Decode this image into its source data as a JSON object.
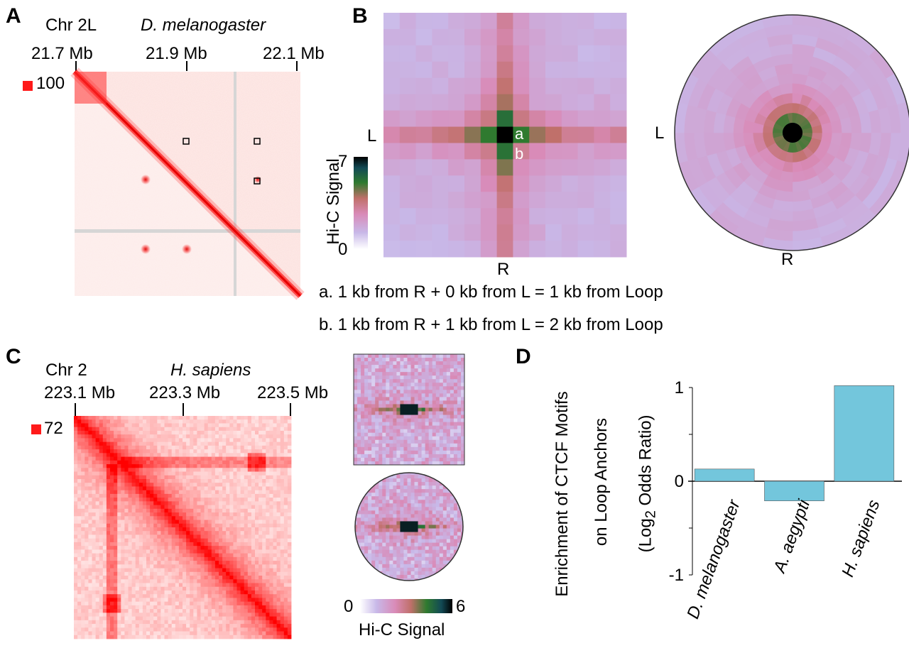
{
  "panels": {
    "A": {
      "letter": "A",
      "chrom": "Chr 2L",
      "species": "D. melanogaster",
      "ticks": [
        "21.7 Mb",
        "21.9 Mb",
        "22.1 Mb"
      ],
      "scale_value": "100"
    },
    "B": {
      "letter": "B",
      "colorbar_label": "Hi-C Signal",
      "colorbar_max": "7",
      "colorbar_min": "0",
      "axis_L": "L",
      "axis_R": "R",
      "pixel_a": "a",
      "pixel_b": "b",
      "note_a": "a. 1 kb from R + 0 kb from L = 1 kb from Loop",
      "note_b": "b. 1 kb from R + 1 kb from L = 2 kb from Loop"
    },
    "C": {
      "letter": "C",
      "chrom": "Chr 2",
      "species": "H. sapiens",
      "ticks": [
        "223.1 Mb",
        "223.3 Mb",
        "223.5 Mb"
      ],
      "scale_value": "72",
      "colorbar_min": "0",
      "colorbar_max": "6",
      "colorbar_label": "Hi-C Signal"
    },
    "D": {
      "letter": "D"
    }
  },
  "colors": {
    "heatmap_red": "#ff0000",
    "bar_fill": "#73c6dc",
    "accent_black": "#000000"
  },
  "chart_data": {
    "type": "bar",
    "categories": [
      "D. melanogaster",
      "A. aegypti",
      "H. sapiens"
    ],
    "values": [
      0.13,
      -0.21,
      1.02
    ],
    "ylabel_line1": "Enrichment of CTCF Motifs",
    "ylabel_line2": "on Loop Anchors",
    "ylabel_line3_pre": "(Log",
    "ylabel_line3_sub": "2",
    "ylabel_line3_post": " Odds Ratio)",
    "ylim": [
      -1,
      1
    ],
    "yticks": [
      "1",
      "0",
      "-1"
    ]
  }
}
